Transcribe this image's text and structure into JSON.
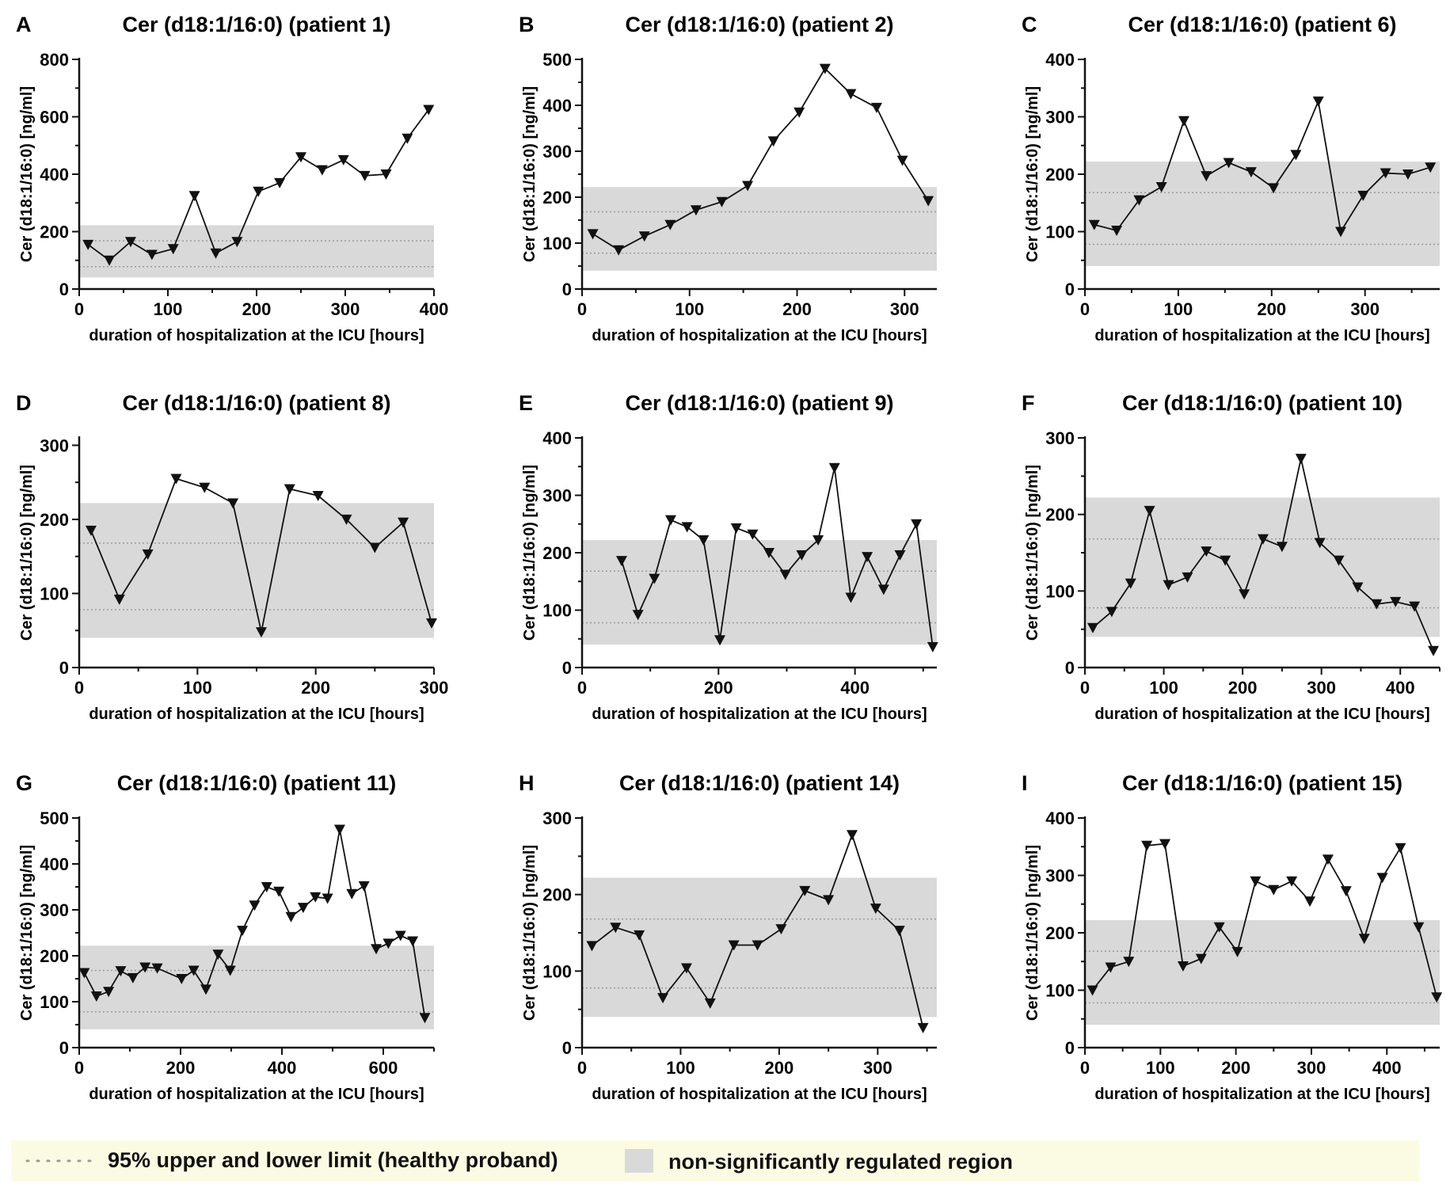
{
  "colors": {
    "band": "#d9d9d9",
    "limit_line": "#9a9a9a",
    "series": "#111111",
    "legend_bg": "#fbfbe3"
  },
  "legend": {
    "dotted_label": "95% upper and lower limit (healthy proband)",
    "region_label": "non-significantly regulated region",
    "dotted_icon": "dotted-line-icon",
    "region_icon": "grey-square-icon"
  },
  "chart_data": [
    {
      "panel": "A",
      "type": "line",
      "title": "Cer (d18:1/16:0) (patient 1)",
      "xlabel": "duration of hospitalization at the ICU [hours]",
      "ylabel": "Cer (d18:1/16:0) [ng/ml]",
      "xlim": [
        0,
        400
      ],
      "ylim": [
        0,
        800
      ],
      "xticks": [
        0,
        100,
        200,
        300,
        400
      ],
      "yticks": [
        0,
        200,
        400,
        600,
        800
      ],
      "band": [
        40,
        222
      ],
      "limits": [
        78,
        168
      ],
      "series": [
        {
          "name": "patient 1",
          "marker": "triangle-down",
          "x": [
            10,
            34,
            58,
            82,
            106,
            130,
            154,
            178,
            202,
            226,
            250,
            274,
            298,
            322,
            346,
            370,
            394
          ],
          "y": [
            155,
            100,
            165,
            120,
            140,
            325,
            125,
            165,
            340,
            370,
            460,
            415,
            450,
            395,
            400,
            525,
            625
          ]
        }
      ]
    },
    {
      "panel": "B",
      "type": "line",
      "title": "Cer (d18:1/16:0) (patient 2)",
      "xlabel": "duration of hospitalization at the ICU [hours]",
      "ylabel": "Cer (d18:1/16:0) [ng/ml]",
      "xlim": [
        0,
        330
      ],
      "ylim": [
        0,
        500
      ],
      "xticks": [
        0,
        100,
        200,
        300
      ],
      "yticks": [
        0,
        100,
        200,
        300,
        400,
        500
      ],
      "band": [
        40,
        222
      ],
      "limits": [
        78,
        168
      ],
      "series": [
        {
          "name": "patient 2",
          "marker": "triangle-down",
          "x": [
            10,
            34,
            58,
            82,
            106,
            130,
            154,
            178,
            202,
            226,
            250,
            274,
            298,
            322
          ],
          "y": [
            120,
            85,
            115,
            140,
            172,
            190,
            225,
            322,
            385,
            480,
            425,
            395,
            280,
            192
          ]
        }
      ]
    },
    {
      "panel": "C",
      "type": "line",
      "title": "Cer (d18:1/16:0) (patient 6)",
      "xlabel": "duration of hospitalization at the ICU [hours]",
      "ylabel": "Cer (d18:1/16:0) [ng/ml]",
      "xlim": [
        0,
        380
      ],
      "ylim": [
        0,
        400
      ],
      "xticks": [
        0,
        100,
        200,
        300
      ],
      "yticks": [
        0,
        100,
        200,
        300,
        400
      ],
      "band": [
        40,
        222
      ],
      "limits": [
        78,
        168
      ],
      "series": [
        {
          "name": "patient 6",
          "marker": "triangle-down",
          "x": [
            10,
            34,
            58,
            82,
            106,
            130,
            154,
            178,
            202,
            226,
            250,
            274,
            298,
            322,
            346,
            370
          ],
          "y": [
            112,
            102,
            155,
            178,
            293,
            197,
            220,
            204,
            176,
            234,
            327,
            100,
            163,
            202,
            200,
            212
          ]
        }
      ]
    },
    {
      "panel": "D",
      "type": "line",
      "title": "Cer (d18:1/16:0) (patient 8)",
      "xlabel": "duration of hospitalization at the ICU [hours]",
      "ylabel": "Cer (d18:1/16:0) [ng/ml]",
      "xlim": [
        0,
        300
      ],
      "ylim": [
        0,
        310
      ],
      "xticks": [
        0,
        100,
        200,
        300
      ],
      "yticks": [
        0,
        100,
        200,
        300
      ],
      "band": [
        40,
        222
      ],
      "limits": [
        78,
        168
      ],
      "series": [
        {
          "name": "patient 8",
          "marker": "triangle-down",
          "x": [
            10,
            34,
            58,
            82,
            106,
            130,
            154,
            178,
            202,
            226,
            250,
            274,
            298
          ],
          "y": [
            185,
            92,
            153,
            255,
            243,
            222,
            48,
            241,
            232,
            200,
            162,
            196,
            60
          ]
        }
      ]
    },
    {
      "panel": "E",
      "type": "line",
      "title": "Cer (d18:1/16:0) (patient 9)",
      "xlabel": "duration of hospitalization at the ICU [hours]",
      "ylabel": "Cer (d18:1/16:0) [ng/ml]",
      "xlim": [
        0,
        520
      ],
      "ylim": [
        0,
        400
      ],
      "xticks": [
        0,
        200,
        400
      ],
      "yticks": [
        0,
        100,
        200,
        300,
        400
      ],
      "band": [
        40,
        222
      ],
      "limits": [
        78,
        168
      ],
      "series": [
        {
          "name": "patient 9",
          "marker": "triangle-down",
          "x": [
            58,
            82,
            106,
            130,
            154,
            178,
            202,
            226,
            250,
            274,
            298,
            322,
            346,
            370,
            394,
            418,
            442,
            466,
            490,
            514
          ],
          "y": [
            186,
            92,
            155,
            257,
            245,
            222,
            48,
            243,
            232,
            200,
            162,
            196,
            222,
            348,
            122,
            193,
            136,
            196,
            250,
            36
          ]
        }
      ]
    },
    {
      "panel": "F",
      "type": "line",
      "title": "Cer (d18:1/16:0) (patient 10)",
      "xlabel": "duration of hospitalization at the ICU [hours]",
      "ylabel": "Cer (d18:1/16:0) [ng/ml]",
      "xlim": [
        0,
        450
      ],
      "ylim": [
        0,
        300
      ],
      "xticks": [
        0,
        100,
        200,
        300,
        400
      ],
      "yticks": [
        0,
        100,
        200,
        300
      ],
      "band": [
        40,
        222
      ],
      "limits": [
        78,
        168
      ],
      "series": [
        {
          "name": "patient 10",
          "marker": "triangle-down",
          "x": [
            10,
            34,
            58,
            82,
            106,
            130,
            154,
            178,
            202,
            226,
            250,
            274,
            298,
            322,
            346,
            370,
            394,
            418,
            442
          ],
          "y": [
            52,
            73,
            110,
            205,
            108,
            118,
            152,
            140,
            96,
            168,
            158,
            273,
            163,
            140,
            105,
            83,
            86,
            80,
            22
          ]
        }
      ]
    },
    {
      "panel": "G",
      "type": "line",
      "title": "Cer (d18:1/16:0) (patient 11)",
      "xlabel": "duration of hospitalization at the ICU [hours]",
      "ylabel": "Cer (d18:1/16:0) [ng/ml]",
      "xlim": [
        0,
        700
      ],
      "ylim": [
        0,
        500
      ],
      "xticks": [
        0,
        200,
        400,
        600
      ],
      "yticks": [
        0,
        100,
        200,
        300,
        400,
        500
      ],
      "band": [
        40,
        222
      ],
      "limits": [
        78,
        168
      ],
      "series": [
        {
          "name": "patient 11",
          "marker": "triangle-down",
          "x": [
            10,
            34,
            58,
            82,
            106,
            130,
            154,
            202,
            226,
            250,
            274,
            298,
            322,
            346,
            370,
            394,
            418,
            442,
            466,
            490,
            514,
            538,
            562,
            586,
            610,
            634,
            658,
            682
          ],
          "y": [
            163,
            112,
            122,
            167,
            152,
            175,
            173,
            150,
            168,
            127,
            203,
            168,
            255,
            310,
            350,
            340,
            285,
            305,
            328,
            325,
            475,
            335,
            352,
            215,
            227,
            244,
            232,
            65
          ]
        }
      ]
    },
    {
      "panel": "H",
      "type": "line",
      "title": "Cer (d18:1/16:0) (patient 14)",
      "xlabel": "duration of hospitalization at the ICU [hours]",
      "ylabel": "Cer (d18:1/16:0) [ng/ml]",
      "xlim": [
        0,
        360
      ],
      "ylim": [
        0,
        300
      ],
      "xticks": [
        0,
        100,
        200,
        300
      ],
      "yticks": [
        0,
        100,
        200,
        300
      ],
      "band": [
        40,
        222
      ],
      "limits": [
        78,
        168
      ],
      "series": [
        {
          "name": "patient 14",
          "marker": "triangle-down",
          "x": [
            10,
            34,
            58,
            82,
            106,
            130,
            154,
            178,
            202,
            226,
            250,
            274,
            298,
            322,
            346
          ],
          "y": [
            133,
            157,
            147,
            65,
            104,
            58,
            134,
            134,
            155,
            205,
            193,
            278,
            182,
            153,
            26
          ]
        }
      ]
    },
    {
      "panel": "I",
      "type": "line",
      "title": "Cer (d18:1/16:0) (patient 15)",
      "xlabel": "duration of hospitalization at the ICU [hours]",
      "ylabel": "Cer (d18:1/16:0) [ng/ml]",
      "xlim": [
        0,
        470
      ],
      "ylim": [
        0,
        400
      ],
      "xticks": [
        0,
        100,
        200,
        300,
        400
      ],
      "yticks": [
        0,
        100,
        200,
        300,
        400
      ],
      "band": [
        40,
        222
      ],
      "limits": [
        78,
        168
      ],
      "series": [
        {
          "name": "patient 15",
          "marker": "triangle-down",
          "x": [
            10,
            34,
            58,
            82,
            106,
            130,
            154,
            178,
            202,
            226,
            250,
            274,
            298,
            322,
            346,
            370,
            394,
            418,
            442,
            466
          ],
          "y": [
            100,
            140,
            150,
            352,
            355,
            142,
            155,
            210,
            167,
            290,
            275,
            290,
            255,
            328,
            273,
            190,
            296,
            348,
            210,
            88
          ]
        }
      ]
    }
  ]
}
